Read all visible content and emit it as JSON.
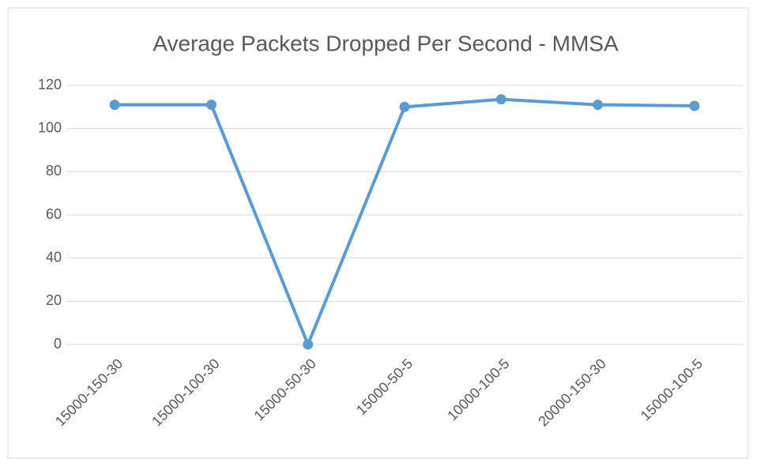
{
  "chart_data": {
    "type": "line",
    "title": "Average Packets Dropped Per Second - MMSA",
    "categories": [
      "15000-150-30",
      "15000-100-30",
      "15000-50-30",
      "15000-50-5",
      "10000-100-5",
      "20000-150-30",
      "15000-100-5"
    ],
    "series": [
      {
        "name": "Average Packets Dropped Per Second",
        "color": "#5b9bd5",
        "values": [
          111,
          111,
          0,
          110,
          113.5,
          111,
          110.5
        ]
      }
    ],
    "ylim": [
      0,
      120
    ],
    "yticks": [
      0,
      20,
      40,
      60,
      80,
      100,
      120
    ],
    "grid": true
  }
}
